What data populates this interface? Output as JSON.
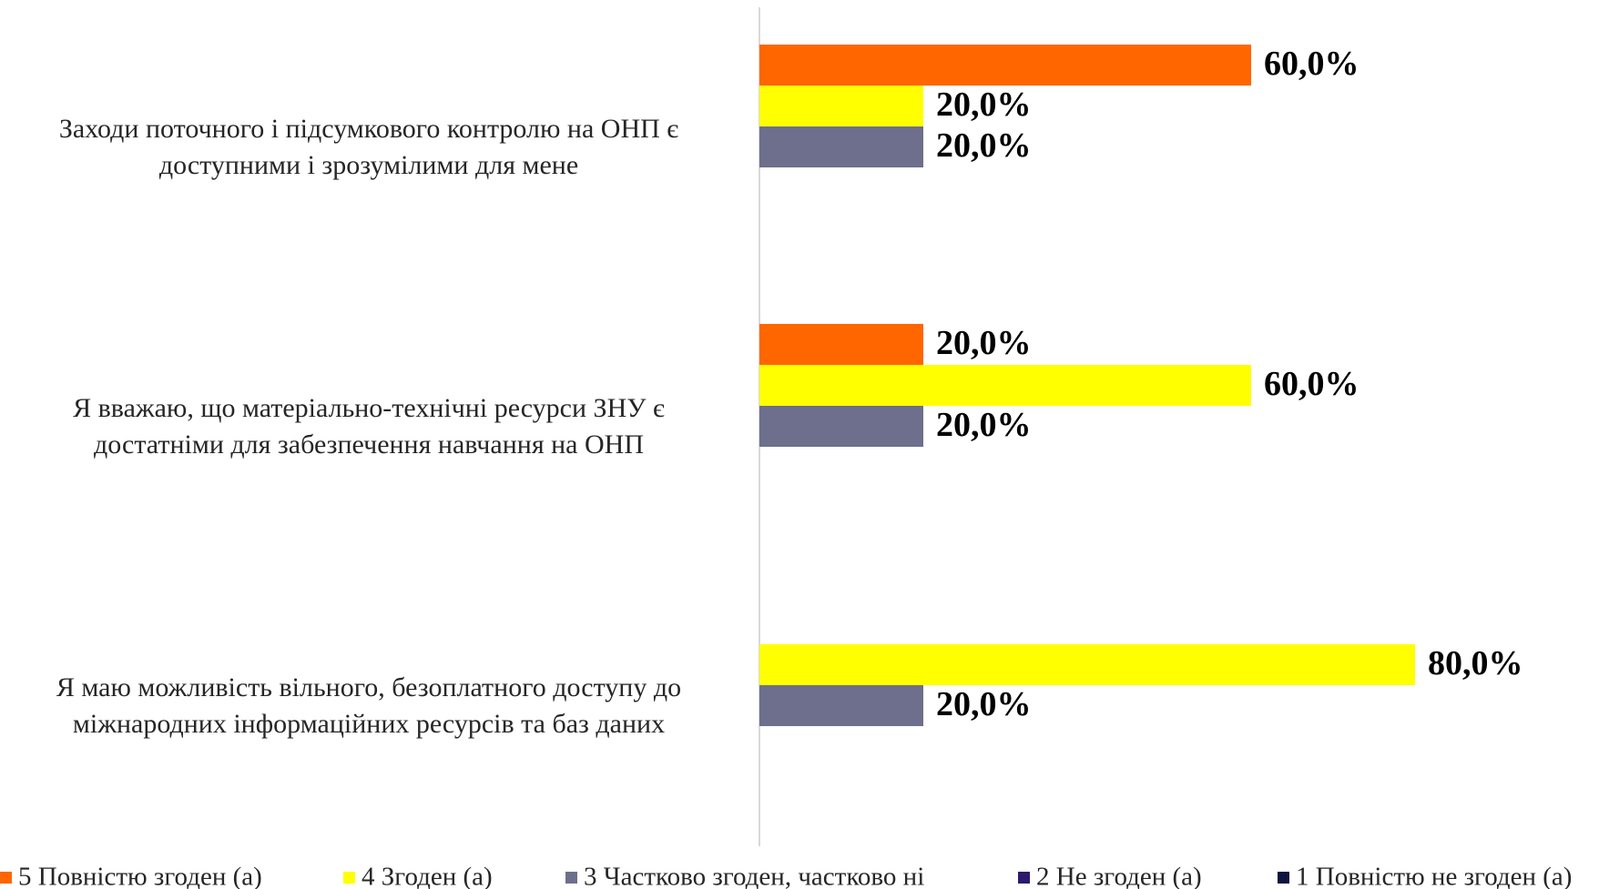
{
  "chart_data": {
    "type": "bar",
    "orientation": "horizontal",
    "categories": [
      "Заходи поточного і підсумкового контролю на ОНП є\nдоступними і зрозумілими для мене",
      "Я вважаю, що матеріально-технічні ресурси ЗНУ є\nдостатніми для забезпечення навчання на ОНП",
      "Я маю можливість вільного, безоплатного доступу до\nміжнародних інформаційних ресурсів та баз даних"
    ],
    "series": [
      {
        "name": "5 Повністю згоден (а)",
        "color": "#ff6600",
        "values": [
          60,
          20,
          0
        ],
        "value_labels": [
          "60,0%",
          "20,0%",
          null
        ]
      },
      {
        "name": "4 Згоден (а)",
        "color": "#ffff00",
        "values": [
          20,
          60,
          80
        ],
        "value_labels": [
          "20,0%",
          "60,0%",
          "80,0%"
        ]
      },
      {
        "name": "3 Частково згоден, частково ні",
        "color": "#6d6f8c",
        "values": [
          20,
          20,
          20
        ],
        "value_labels": [
          "20,0%",
          "20,0%",
          "20,0%"
        ]
      },
      {
        "name": "2 Не згоден (а)",
        "color": "#2e1a6e",
        "values": [
          0,
          0,
          0
        ],
        "value_labels": [
          null,
          null,
          null
        ]
      },
      {
        "name": "1 Повністю не згоден (а)",
        "color": "#0d1440",
        "values": [
          0,
          0,
          0
        ],
        "value_labels": [
          null,
          null,
          null
        ]
      }
    ],
    "xlim": [
      0,
      100
    ],
    "legend": "bottom"
  }
}
